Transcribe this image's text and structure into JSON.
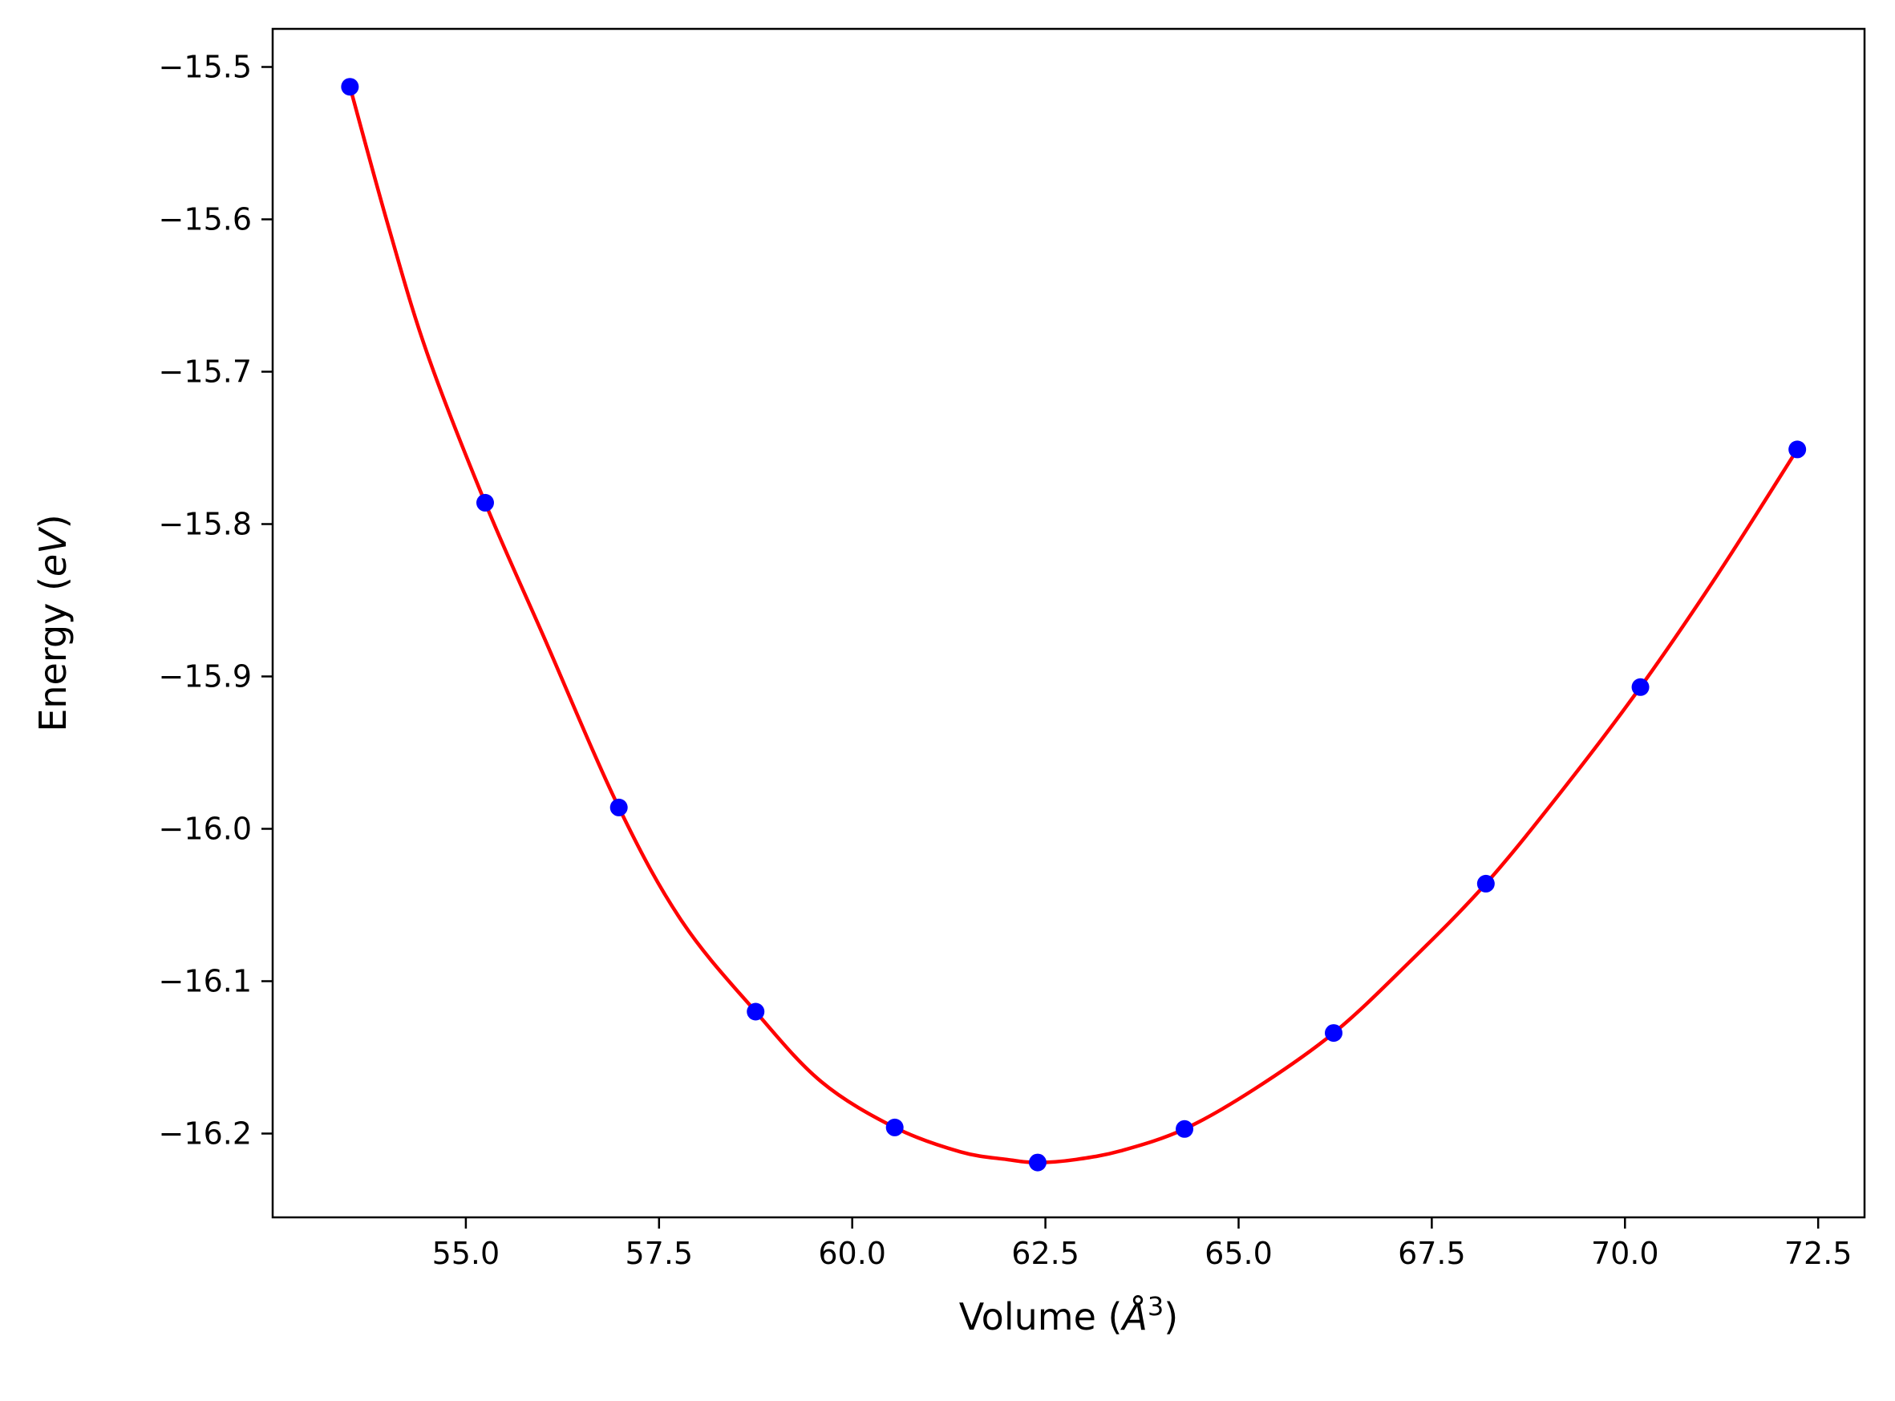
{
  "chart_data": {
    "type": "line",
    "title": "",
    "xlabel": "Volume ($Å^3$)",
    "ylabel": "Energy ($eV$)",
    "xlim": [
      52.5,
      73.1
    ],
    "ylim": [
      -16.255,
      -15.475
    ],
    "xticks": [
      55.0,
      57.5,
      60.0,
      62.5,
      65.0,
      67.5,
      70.0,
      72.5
    ],
    "xtick_labels": [
      "55.0",
      "57.5",
      "60.0",
      "62.5",
      "65.0",
      "67.5",
      "70.0",
      "72.5"
    ],
    "yticks": [
      -15.5,
      -15.6,
      -15.7,
      -15.8,
      -15.9,
      -16.0,
      -16.1,
      -16.2
    ],
    "ytick_labels": [
      "−15.5",
      "−15.6",
      "−15.7",
      "−15.8",
      "−15.9",
      "−16.0",
      "−16.1",
      "−16.2"
    ],
    "grid": false,
    "series": [
      {
        "kind": "scatter",
        "color": "#0000ff",
        "x": [
          53.5,
          55.25,
          56.98,
          58.75,
          60.55,
          62.4,
          64.3,
          66.23,
          68.2,
          70.2,
          72.23
        ],
        "y": [
          -15.513,
          -15.786,
          -15.986,
          -16.12,
          -16.196,
          -16.219,
          -16.197,
          -16.134,
          -16.036,
          -15.907,
          -15.751
        ]
      },
      {
        "kind": "fit-line",
        "color": "#ff0000",
        "x": [
          53.5,
          54.0,
          54.5,
          55.25,
          56.0,
          56.98,
          57.8,
          58.75,
          59.6,
          60.55,
          61.4,
          62.0,
          62.4,
          62.9,
          63.5,
          64.3,
          65.2,
          66.23,
          67.2,
          68.2,
          69.2,
          70.2,
          71.2,
          72.23
        ],
        "y": [
          -15.513,
          -15.605,
          -15.688,
          -15.786,
          -15.873,
          -15.986,
          -16.061,
          -16.12,
          -16.166,
          -16.196,
          -16.212,
          -16.217,
          -16.219,
          -16.217,
          -16.211,
          -16.197,
          -16.171,
          -16.134,
          -16.088,
          -16.036,
          -15.974,
          -15.907,
          -15.833,
          -15.751
        ]
      }
    ]
  }
}
